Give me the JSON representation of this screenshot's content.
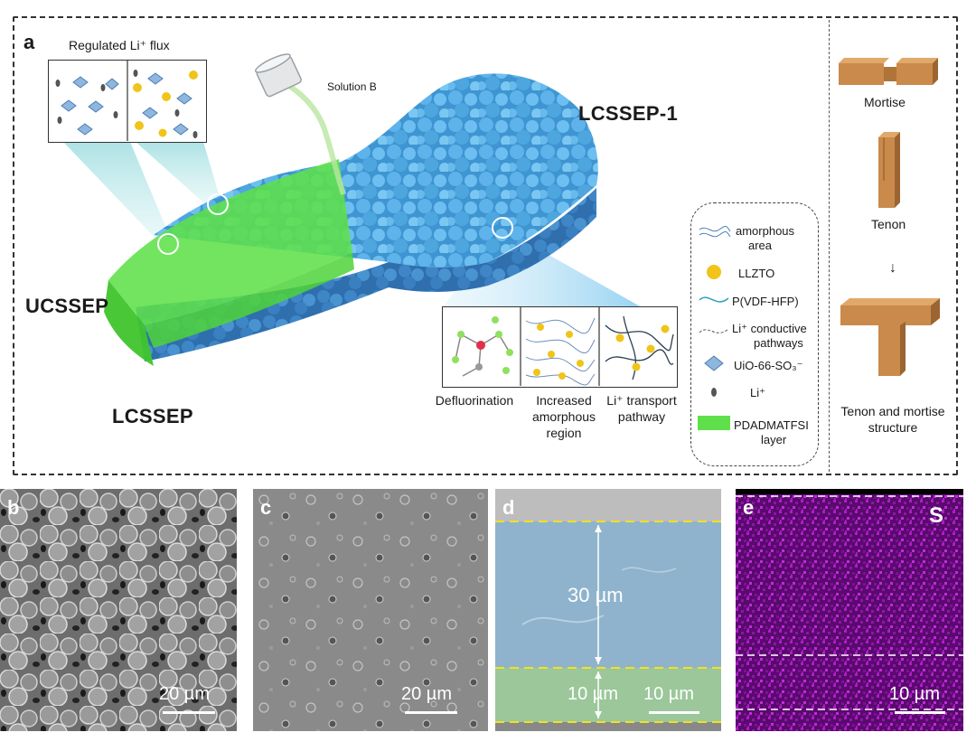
{
  "panel_a": {
    "letter": "a",
    "regulated_flux": "Regulated Li⁺ flux",
    "solution": "Solution B",
    "lcssep1": "LCSSEP-1",
    "ucssep": "UCSSEP",
    "lcssep": "LCSSEP",
    "caption_defluorination": "Defluorination",
    "caption_amorphous": [
      "Increased",
      "amorphous",
      "region"
    ],
    "caption_transport": [
      "Li⁺ transport",
      "pathway"
    ]
  },
  "legend": {
    "amorphous": [
      "amorphous",
      "area"
    ],
    "llzto": "LLZTO",
    "pvdf": "P(VDF-HFP)",
    "conductive": [
      "Li⁺ conductive",
      "pathways"
    ],
    "uio": "UiO-66-SO₃⁻",
    "li": "Li⁺",
    "pdadma": [
      "PDADMATFSI",
      "layer"
    ]
  },
  "woodwork": {
    "mortise": "Mortise",
    "tenon": "Tenon",
    "arrow": "↓",
    "structure": [
      "Tenon and mortise",
      "structure"
    ]
  },
  "panels": {
    "b": {
      "letter": "b",
      "scale": "20 µm"
    },
    "c": {
      "letter": "c",
      "scale": "20 µm"
    },
    "d": {
      "letter": "d",
      "scale": "10 µm",
      "thick_top": "30 µm",
      "thick_bottom": "10 µm"
    },
    "e": {
      "letter": "e",
      "scale": "10 µm",
      "element": "S"
    }
  },
  "colors": {
    "blue_particles": "#4a9fd8",
    "green_layer": "#5fe04a",
    "llzto_yellow": "#f0c419",
    "edx_magenta": "#b01cc8",
    "wood": "#c98a4b",
    "dash_yellow": "#f5e020"
  }
}
